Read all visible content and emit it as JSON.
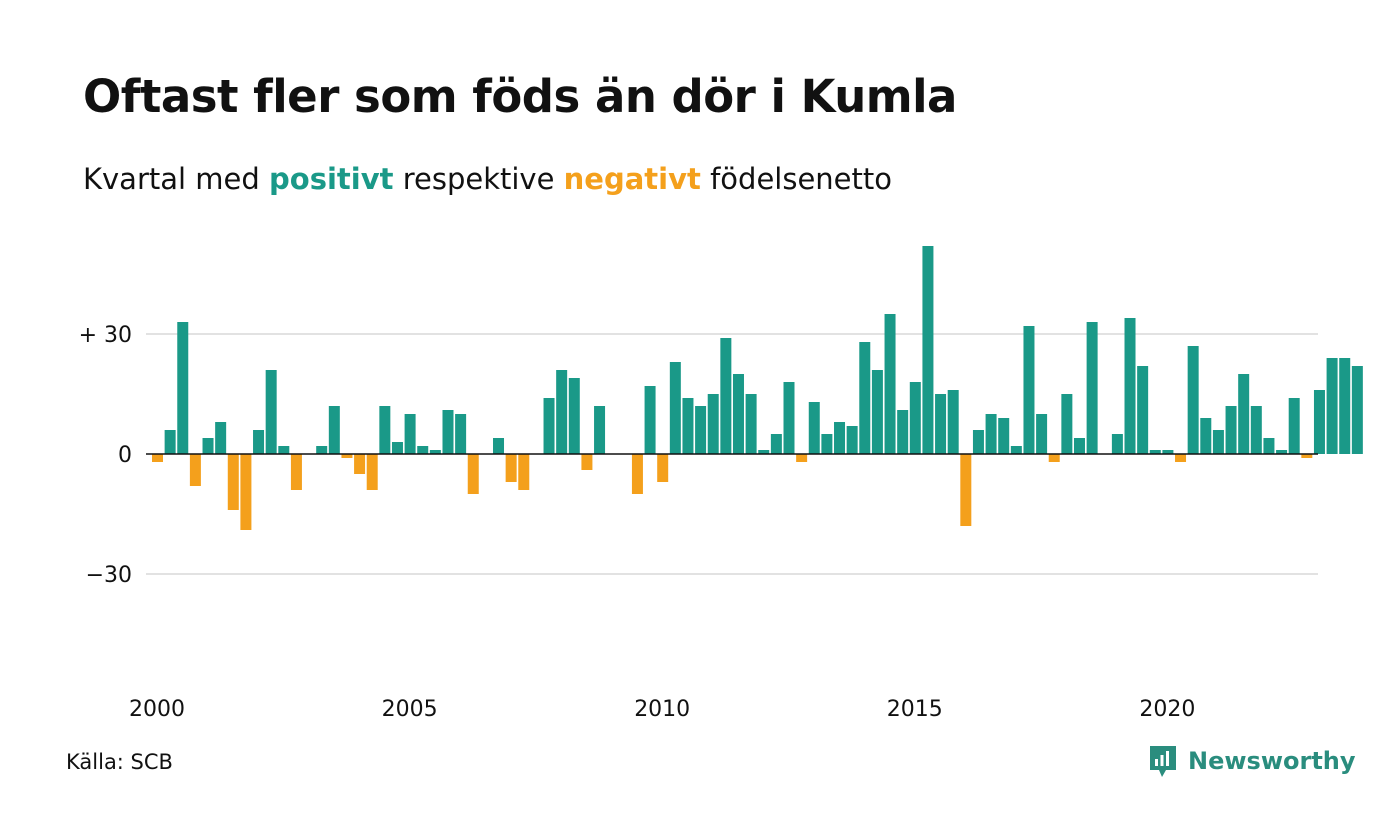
{
  "title": "Oftast fler som föds än dör i Kumla",
  "subtitle": {
    "prefix": "Kvartal med ",
    "positive_word": "positivt",
    "middle": " respektive ",
    "negative_word": "negativt",
    "suffix": " födelsenetto"
  },
  "source": "Källa: SCB",
  "brand": {
    "name": "Newsworthy",
    "icon": "newsworthy-logo-icon"
  },
  "colors": {
    "positive": "#1a9988",
    "negative": "#f4a01c",
    "grid": "#e2e2e2",
    "axis": "#111111"
  },
  "chart_data": {
    "type": "bar",
    "title": "Oftast fler som föds än dör i Kumla",
    "subtitle": "Kvartal med positivt respektive negativt födelsenetto",
    "start": {
      "year": 2000,
      "quarter": 1
    },
    "values": [
      -2,
      6,
      33,
      -8,
      4,
      8,
      -14,
      -19,
      6,
      21,
      2,
      -9,
      0,
      2,
      12,
      -1,
      -5,
      -9,
      12,
      3,
      10,
      2,
      1,
      11,
      10,
      -10,
      0,
      4,
      -7,
      -9,
      0,
      14,
      21,
      19,
      -4,
      12,
      0,
      0,
      -10,
      17,
      -7,
      23,
      14,
      12,
      15,
      29,
      20,
      15,
      1,
      5,
      18,
      -2,
      13,
      5,
      8,
      7,
      28,
      21,
      35,
      11,
      18,
      52,
      15,
      16,
      -18,
      6,
      10,
      9,
      2,
      32,
      10,
      -2,
      15,
      4,
      33,
      0,
      5,
      34,
      22,
      1,
      1,
      -2,
      27,
      9,
      6,
      12,
      20,
      12,
      4,
      1,
      14,
      -1,
      16,
      24,
      24,
      22
    ],
    "ylim": [
      -60,
      60
    ],
    "yticks": [
      {
        "value": 30,
        "label": "+ 30"
      },
      {
        "value": 0,
        "label": "0"
      },
      {
        "value": -30,
        "label": "−30"
      }
    ],
    "xticks": [
      {
        "year": 2000,
        "label": "2000"
      },
      {
        "year": 2005,
        "label": "2005"
      },
      {
        "year": 2010,
        "label": "2010"
      },
      {
        "year": 2015,
        "label": "2015"
      },
      {
        "year": 2020,
        "label": "2020"
      }
    ],
    "grid": true,
    "legend": "none"
  }
}
